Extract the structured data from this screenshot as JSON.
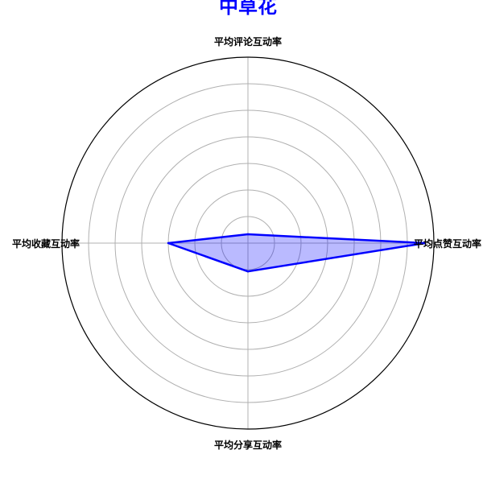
{
  "colors": {
    "series": "#0000ff",
    "fill": "#0000ff",
    "grid": "#b0b0b0",
    "frame": "#000000",
    "title": "#0000ff"
  },
  "chart_data": {
    "type": "radar",
    "title": "中草花",
    "axes": [
      "平均点赞互动率",
      "平均评论互动率",
      "平均收藏互动率",
      "平均分享互动率"
    ],
    "series": [
      {
        "name": "中草花",
        "values": [
          1.0,
          0.05,
          0.45,
          0.16
        ]
      }
    ],
    "r_range": [
      0,
      1.05
    ],
    "grid_rings": [
      0.15,
      0.3,
      0.45,
      0.6,
      0.75,
      0.9
    ],
    "grid": true,
    "tick_labels_shown": false,
    "legend": "none"
  }
}
